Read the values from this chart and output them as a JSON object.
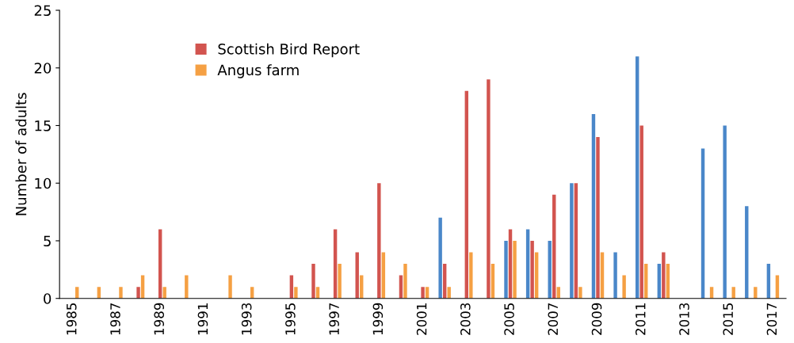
{
  "chart_data": {
    "type": "bar",
    "ylabel": "Number of adults",
    "categories": [
      "1985",
      null,
      "1987",
      null,
      "1989",
      null,
      "1991",
      null,
      "1993",
      null,
      "1995",
      null,
      "1997",
      null,
      "1999",
      null,
      "2001",
      null,
      "2003",
      null,
      "2005",
      null,
      "2007",
      null,
      "2009",
      null,
      "2011",
      null,
      "2013",
      null,
      "2015",
      null,
      "2017"
    ],
    "series": [
      {
        "color": "#4a87c9",
        "values": [
          null,
          null,
          null,
          null,
          null,
          null,
          null,
          null,
          null,
          null,
          null,
          null,
          null,
          null,
          null,
          null,
          null,
          7,
          null,
          null,
          5,
          6,
          5,
          10,
          16,
          4,
          21,
          3,
          null,
          13,
          15,
          8,
          3
        ]
      },
      {
        "name": "Scottish Bird Report",
        "color": "#d2544f",
        "values": [
          null,
          null,
          null,
          1,
          6,
          null,
          null,
          null,
          null,
          null,
          2,
          3,
          6,
          4,
          10,
          2,
          1,
          3,
          18,
          19,
          6,
          5,
          9,
          10,
          14,
          null,
          15,
          4,
          null,
          null,
          null,
          null,
          null
        ]
      },
      {
        "name": "Angus farm",
        "color": "#f5a043",
        "values": [
          1,
          1,
          1,
          2,
          1,
          2,
          null,
          2,
          1,
          null,
          1,
          1,
          3,
          2,
          4,
          3,
          1,
          1,
          4,
          3,
          5,
          4,
          1,
          1,
          4,
          2,
          3,
          3,
          null,
          1,
          1,
          1,
          2
        ]
      }
    ],
    "ylim": [
      0,
      25
    ],
    "yticks": [
      0,
      5,
      10,
      15,
      20,
      25
    ],
    "grid": false,
    "legend": "top left"
  }
}
